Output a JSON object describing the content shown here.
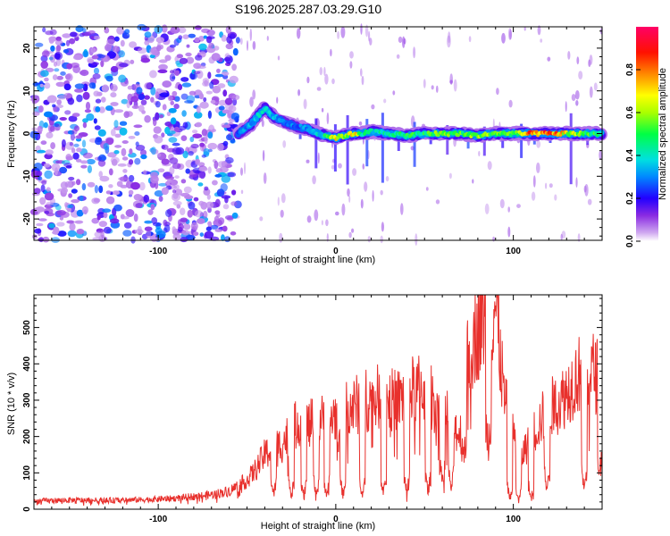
{
  "figure_title": "S196.2025.287.03.29.G10",
  "chart_data": [
    {
      "type": "heatmap",
      "title": "S196.2025.287.03.29.G10",
      "xlabel": "Height of straight line (km)",
      "ylabel": "Frequency (Hz)",
      "xlim": [
        -170,
        150
      ],
      "ylim": [
        -25,
        25
      ],
      "xticks": [
        -100,
        0,
        100
      ],
      "xtick_labels": [
        "-100",
        "0",
        "100"
      ],
      "yticks": [
        -20,
        -10,
        0,
        10,
        20
      ],
      "ytick_labels": [
        "-20",
        "-10",
        "0",
        "10",
        "20"
      ],
      "colorbar": {
        "label": "Normalized spectral amplitude",
        "range": [
          0,
          1
        ],
        "ticks": [
          0.0,
          0.2,
          0.4,
          0.6,
          0.8
        ],
        "tick_labels": [
          "0.0",
          "0.2",
          "0.4",
          "0.6",
          "0.8"
        ],
        "colormap": "rainbow (white-violet-blue-cyan-green-yellow-red-magenta)"
      },
      "ridge": {
        "description": "Doppler frequency ridge near 0 Hz above ~-45 km",
        "x": [
          -55,
          -48,
          -40,
          -35,
          -30,
          -25,
          -20,
          -15,
          -10,
          -5,
          0,
          5,
          10,
          15,
          20,
          30,
          40,
          50,
          60,
          70,
          80,
          90,
          100,
          110,
          120,
          130,
          140,
          150
        ],
        "frequency": [
          0,
          2,
          6,
          4,
          3,
          2,
          1.5,
          1,
          0,
          -0.5,
          -1,
          -0.5,
          0,
          0,
          0.5,
          0,
          -0.5,
          0,
          0,
          0,
          -0.5,
          0,
          0,
          0,
          0,
          0,
          0,
          0
        ],
        "peak_amplitude": [
          0.3,
          0.35,
          0.4,
          0.35,
          0.3,
          0.3,
          0.3,
          0.35,
          0.4,
          0.5,
          0.75,
          0.6,
          0.8,
          0.5,
          0.45,
          0.45,
          0.5,
          0.5,
          0.6,
          0.55,
          0.6,
          0.6,
          0.55,
          0.85,
          0.85,
          0.7,
          0.55,
          0.5
        ]
      },
      "noise_region": {
        "x_range": [
          -170,
          -55
        ],
        "amplitude_range": [
          0.05,
          0.35
        ]
      }
    },
    {
      "type": "line",
      "xlabel": "Height of straight line (km)",
      "ylabel": "SNR (10 * v/v)",
      "xlim": [
        -170,
        150
      ],
      "ylim": [
        0,
        590
      ],
      "xticks": [
        -100,
        0,
        100
      ],
      "xtick_labels": [
        "-100",
        "0",
        "100"
      ],
      "yticks": [
        0,
        100,
        200,
        300,
        400,
        500
      ],
      "ytick_labels": [
        "0",
        "100",
        "200",
        "300",
        "400",
        "500"
      ],
      "series": [
        {
          "name": "SNR",
          "color": "#e8302c",
          "x": [
            -170,
            -150,
            -130,
            -110,
            -90,
            -80,
            -70,
            -60,
            -50,
            -45,
            -40,
            -35,
            -30,
            -25,
            -20,
            -15,
            -10,
            -5,
            0,
            5,
            10,
            15,
            20,
            25,
            30,
            35,
            40,
            45,
            50,
            55,
            60,
            65,
            70,
            75,
            80,
            85,
            90,
            95,
            100,
            105,
            110,
            115,
            120,
            125,
            130,
            135,
            140,
            145,
            150
          ],
          "y": [
            22,
            25,
            24,
            26,
            30,
            35,
            40,
            50,
            80,
            110,
            150,
            170,
            180,
            220,
            240,
            230,
            250,
            240,
            260,
            270,
            280,
            300,
            300,
            310,
            300,
            300,
            320,
            330,
            330,
            300,
            280,
            250,
            200,
            440,
            500,
            550,
            560,
            300,
            200,
            150,
            200,
            240,
            280,
            290,
            320,
            360,
            390,
            380,
            350
          ],
          "dips": [
            {
              "x": -35,
              "y": 40
            },
            {
              "x": -25,
              "y": 40
            },
            {
              "x": -18,
              "y": 40
            },
            {
              "x": -11,
              "y": 40
            },
            {
              "x": -5,
              "y": 40
            },
            {
              "x": 4,
              "y": 40
            },
            {
              "x": 15,
              "y": 40
            },
            {
              "x": 27,
              "y": 50
            },
            {
              "x": 40,
              "y": 50
            },
            {
              "x": 52,
              "y": 50
            },
            {
              "x": 60,
              "y": 80
            },
            {
              "x": 65,
              "y": 60
            },
            {
              "x": 72,
              "y": 160
            },
            {
              "x": 86,
              "y": 190
            },
            {
              "x": 98,
              "y": 30
            },
            {
              "x": 103,
              "y": 20
            },
            {
              "x": 110,
              "y": 30
            },
            {
              "x": 119,
              "y": 60
            },
            {
              "x": 140,
              "y": 60
            },
            {
              "x": 149,
              "y": 120
            }
          ]
        }
      ]
    }
  ]
}
